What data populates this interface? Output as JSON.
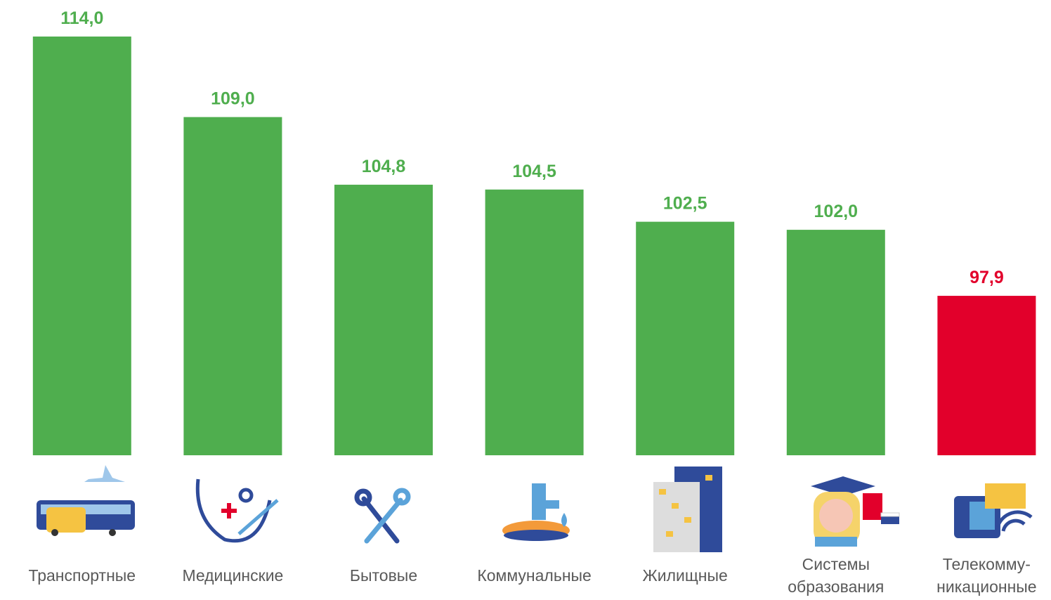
{
  "chart_data": {
    "type": "bar",
    "categories": [
      "Транспортные",
      "Медицинские",
      "Бытовые",
      "Коммунальные",
      "Жилищные",
      "Системы\nобразования",
      "Телекомму-\nникационные"
    ],
    "values": [
      114.0,
      109.0,
      104.8,
      104.5,
      102.5,
      102.0,
      97.9
    ],
    "value_labels": [
      "114,0",
      "109,0",
      "104,8",
      "104,5",
      "102,5",
      "102,0",
      "97,9"
    ],
    "colors": [
      "#4fae4e",
      "#4fae4e",
      "#4fae4e",
      "#4fae4e",
      "#4fae4e",
      "#4fae4e",
      "#e2002b"
    ],
    "ylim": [
      88,
      114
    ]
  }
}
